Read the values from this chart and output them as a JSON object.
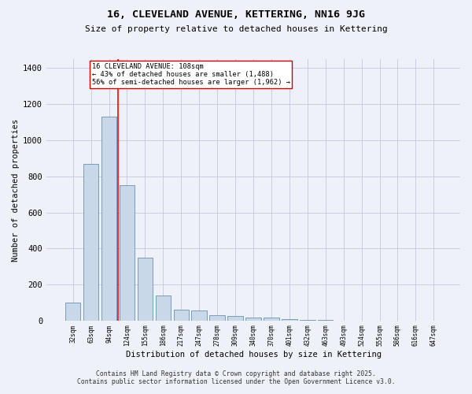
{
  "title": "16, CLEVELAND AVENUE, KETTERING, NN16 9JG",
  "subtitle": "Size of property relative to detached houses in Kettering",
  "xlabel": "Distribution of detached houses by size in Kettering",
  "ylabel": "Number of detached properties",
  "bar_labels": [
    "32sqm",
    "63sqm",
    "94sqm",
    "124sqm",
    "155sqm",
    "186sqm",
    "217sqm",
    "247sqm",
    "278sqm",
    "309sqm",
    "340sqm",
    "370sqm",
    "401sqm",
    "432sqm",
    "463sqm",
    "493sqm",
    "524sqm",
    "555sqm",
    "586sqm",
    "616sqm",
    "647sqm"
  ],
  "bar_values": [
    100,
    870,
    1130,
    750,
    350,
    140,
    60,
    55,
    30,
    25,
    15,
    15,
    10,
    5,
    2,
    1,
    1,
    0,
    0,
    0,
    0
  ],
  "bar_color": "#c8d8e8",
  "bar_edge_color": "#5580a0",
  "grid_color": "#c0c8e0",
  "background_color": "#eef2f8",
  "annotation_text": "16 CLEVELAND AVENUE: 108sqm\n← 43% of detached houses are smaller (1,488)\n56% of semi-detached houses are larger (1,962) →",
  "annotation_box_color": "#ffffff",
  "annotation_box_edge": "#cc0000",
  "annotation_text_color": "#000000",
  "footer_line1": "Contains HM Land Registry data © Crown copyright and database right 2025.",
  "footer_line2": "Contains public sector information licensed under the Open Government Licence v3.0.",
  "ylim": [
    0,
    1450
  ],
  "yticks": [
    0,
    200,
    400,
    600,
    800,
    1000,
    1200,
    1400
  ]
}
